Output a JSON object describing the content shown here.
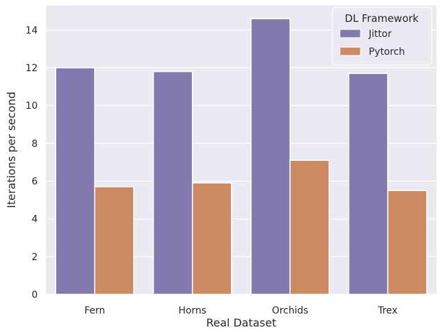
{
  "chart_data": {
    "type": "bar",
    "categories": [
      "Fern",
      "Horns",
      "Orchids",
      "Trex"
    ],
    "series": [
      {
        "name": "Jittor",
        "values": [
          12.0,
          11.8,
          14.6,
          11.7
        ],
        "color": "#8479ae"
      },
      {
        "name": "Pytorch",
        "values": [
          5.7,
          5.9,
          7.1,
          5.5
        ],
        "color": "#cd8a62"
      }
    ],
    "title": "",
    "xlabel": "Real Dataset",
    "ylabel": "Iterations per second",
    "ylim": [
      0,
      15.3
    ],
    "yticks": [
      0,
      2,
      4,
      6,
      8,
      10,
      12,
      14
    ],
    "grid": true,
    "legend": {
      "title": "DL Framework",
      "position": "top-right"
    },
    "background_color": "#eaeaf2"
  }
}
